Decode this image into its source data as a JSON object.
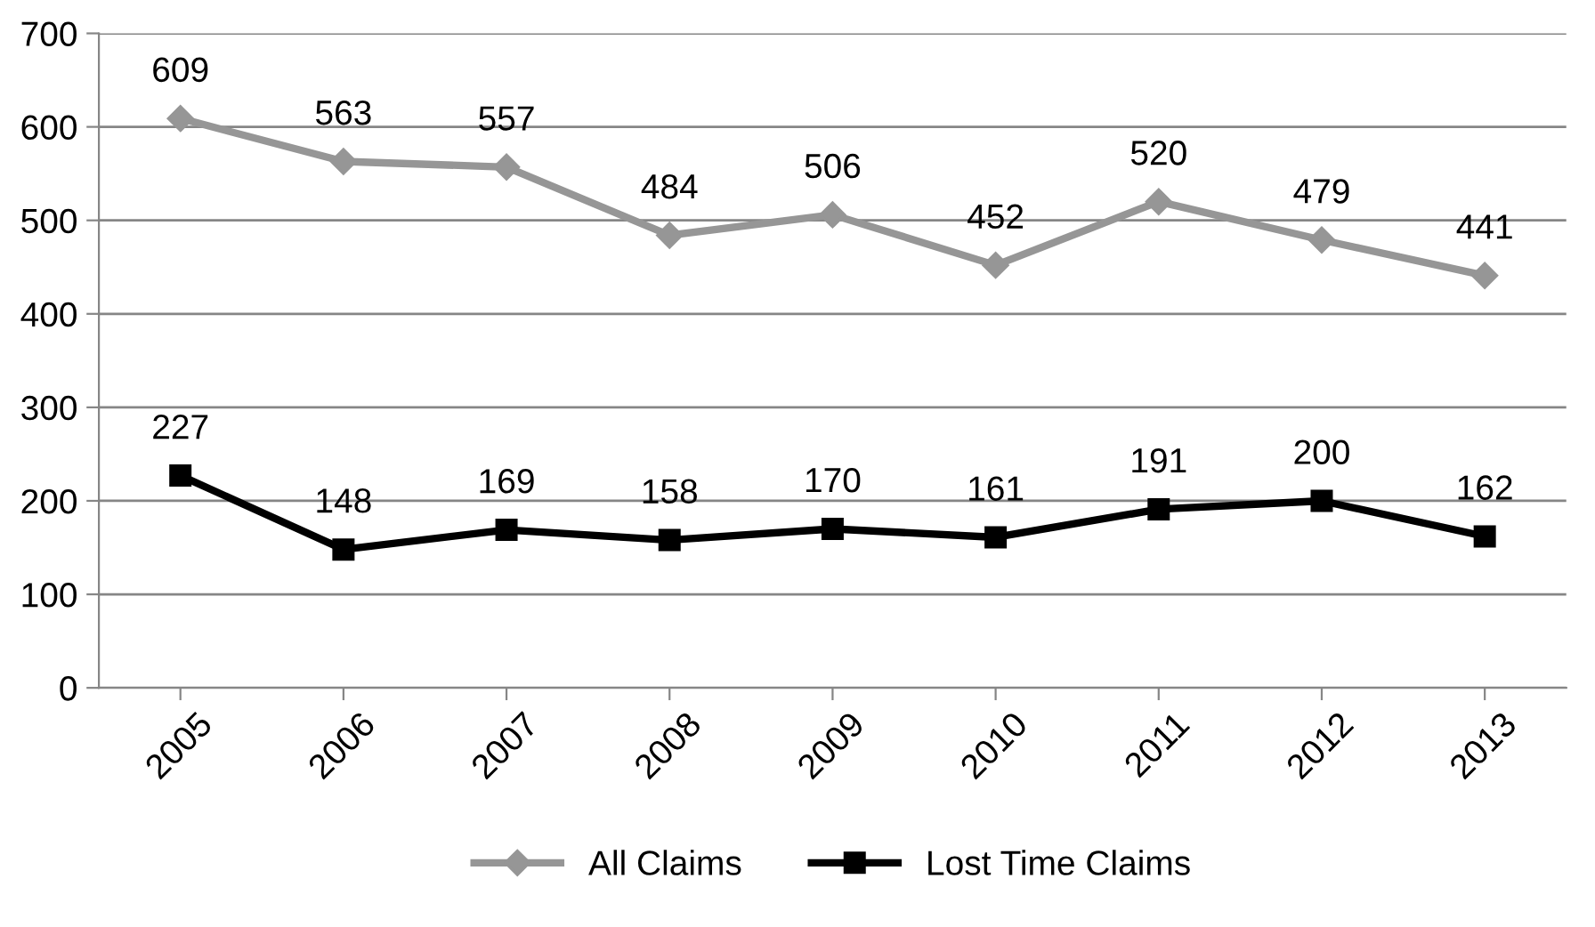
{
  "chart_data": {
    "type": "line",
    "categories": [
      "2005",
      "2006",
      "2007",
      "2008",
      "2009",
      "2010",
      "2011",
      "2012",
      "2013"
    ],
    "series": [
      {
        "name": "All Claims",
        "color": "#969696",
        "marker": "diamond",
        "values": [
          609,
          563,
          557,
          484,
          506,
          452,
          520,
          479,
          441
        ]
      },
      {
        "name": "Lost Time Claims",
        "color": "#000000",
        "marker": "square",
        "values": [
          227,
          148,
          169,
          158,
          170,
          161,
          191,
          200,
          162
        ]
      }
    ],
    "ylim": [
      0,
      700
    ],
    "yticks": [
      0,
      100,
      200,
      300,
      400,
      500,
      600,
      700
    ],
    "grid": "y",
    "legend": "bottom",
    "data_labels": true,
    "line_style": "solid"
  }
}
